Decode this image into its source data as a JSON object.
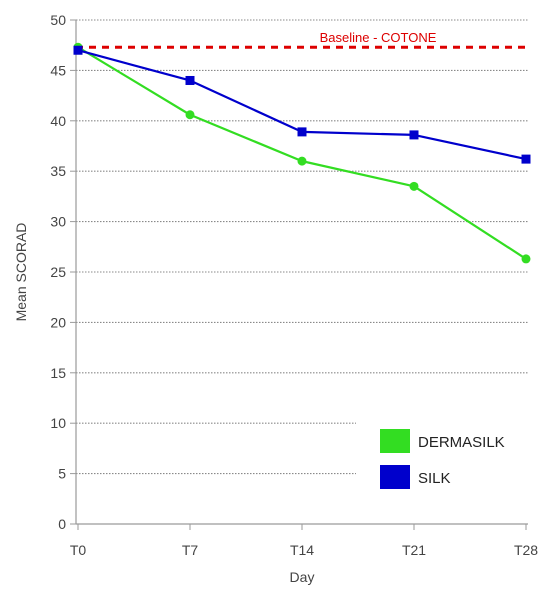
{
  "chart_data": {
    "type": "line",
    "categories": [
      "T0",
      "T7",
      "T14",
      "T21",
      "T28"
    ],
    "series": [
      {
        "name": "DERMASILK",
        "color": "#33dd22",
        "values": [
          47.3,
          40.6,
          36.0,
          33.5,
          26.3
        ]
      },
      {
        "name": "SILK",
        "color": "#0000cc",
        "values": [
          47.0,
          44.0,
          38.9,
          38.6,
          36.2
        ]
      }
    ],
    "baseline": {
      "label": "Baseline - COTONE",
      "value": 47.3,
      "color": "#dd0000",
      "style": "dashed"
    },
    "xlabel": "Day",
    "ylabel": "Mean SCORAD",
    "ylim": [
      0,
      50
    ],
    "yticks": [
      0,
      5,
      10,
      15,
      20,
      25,
      30,
      35,
      40,
      45,
      50
    ],
    "grid": "horizontal",
    "legend": "bottom-right"
  }
}
